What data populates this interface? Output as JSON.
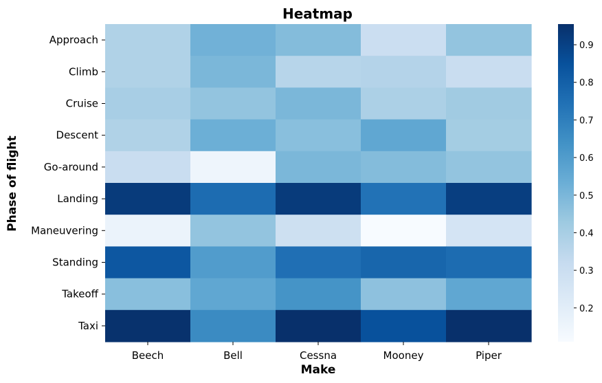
{
  "chart_data": {
    "type": "heatmap",
    "title": "Heatmap",
    "xlabel": "Make",
    "ylabel": "Phase of flight",
    "x_categories": [
      "Beech",
      "Bell",
      "Cessna",
      "Mooney",
      "Piper"
    ],
    "y_categories": [
      "Approach",
      "Climb",
      "Cruise",
      "Descent",
      "Go-around",
      "Landing",
      "Maneuvering",
      "Standing",
      "Takeoff",
      "Taxi"
    ],
    "values": [
      [
        0.38,
        0.52,
        0.48,
        0.3,
        0.45
      ],
      [
        0.38,
        0.5,
        0.36,
        0.37,
        0.31
      ],
      [
        0.4,
        0.45,
        0.5,
        0.39,
        0.42
      ],
      [
        0.38,
        0.53,
        0.47,
        0.56,
        0.41
      ],
      [
        0.31,
        0.15,
        0.5,
        0.48,
        0.45
      ],
      [
        0.92,
        0.76,
        0.92,
        0.74,
        0.91
      ],
      [
        0.16,
        0.45,
        0.29,
        0.11,
        0.26
      ],
      [
        0.83,
        0.6,
        0.75,
        0.78,
        0.76
      ],
      [
        0.47,
        0.56,
        0.63,
        0.46,
        0.56
      ],
      [
        0.95,
        0.66,
        0.96,
        0.85,
        0.96
      ]
    ],
    "colorbar": {
      "min": 0.11,
      "max": 0.955,
      "ticks": [
        0.2,
        0.3,
        0.4,
        0.5,
        0.6,
        0.7,
        0.8,
        0.9
      ],
      "tick_labels": [
        "0.2",
        "0.3",
        "0.4",
        "0.5",
        "0.6",
        "0.7",
        "0.8",
        "0.9"
      ],
      "colormap": "Blues",
      "colormap_stops": [
        "#f7fbff",
        "#deebf7",
        "#c6dbef",
        "#9ecae1",
        "#6baed6",
        "#4292c6",
        "#2171b5",
        "#08519c",
        "#08306b"
      ]
    }
  }
}
